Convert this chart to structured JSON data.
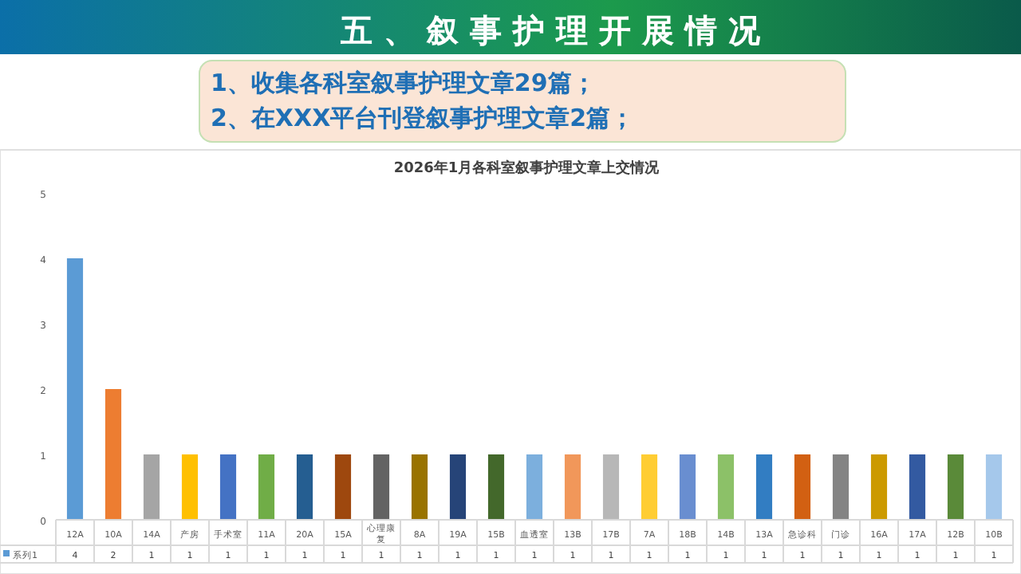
{
  "chart_data": {
    "type": "bar",
    "title": "2026年1月各科室叙事护理文章上交情况",
    "annotations": [
      "五 、 叙 事 护 理 开 展 情 况",
      "1、收集各科室叙事护理文章29篇；",
      "2、在XXX平台刊登叙事护理文章2篇；"
    ],
    "categories": [
      "12A",
      "10A",
      "14A",
      "产房",
      "手术室",
      "11A",
      "20A",
      "15A",
      "心理康复",
      "8A",
      "19A",
      "15B",
      "血透室",
      "13B",
      "17B",
      "7A",
      "18B",
      "14B",
      "13A",
      "急诊科",
      "门诊",
      "16A",
      "17A",
      "12B",
      "10B"
    ],
    "series": [
      {
        "name": "系列1",
        "color": "#5b9bd5",
        "values": [
          4,
          2,
          1,
          1,
          1,
          1,
          1,
          1,
          1,
          1,
          1,
          1,
          1,
          1,
          1,
          1,
          1,
          1,
          1,
          1,
          1,
          1,
          1,
          1,
          1
        ],
        "colors": [
          "#5b9bd5",
          "#ed7d31",
          "#a5a5a5",
          "#ffc000",
          "#4472c4",
          "#70ad47",
          "#255e91",
          "#9e480e",
          "#636363",
          "#997300",
          "#264478",
          "#43682b",
          "#7cafdd",
          "#f1975a",
          "#b7b7b7",
          "#ffcd33",
          "#698ed0",
          "#8cc168",
          "#327dc2",
          "#d26012",
          "#848484",
          "#cc9a00",
          "#335aa1",
          "#5a8a39",
          "#a5c8eb"
        ]
      }
    ],
    "ylim": [
      0,
      5
    ],
    "yticks": [
      0,
      1,
      2,
      3,
      4,
      5
    ],
    "grid": false,
    "data_labels": true,
    "legend": "bottom left"
  }
}
